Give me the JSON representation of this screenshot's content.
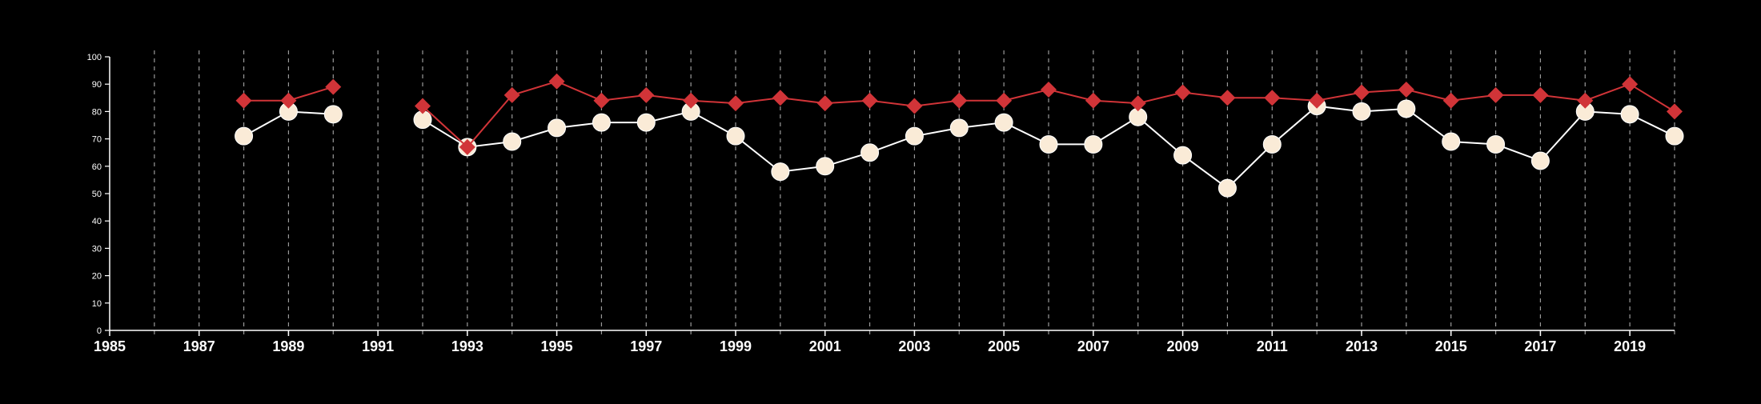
{
  "colors": {
    "background": "#000000",
    "axis": "#ffffff",
    "gridline": "#999999",
    "series_1": "#d13438",
    "series_2": "#ffffff",
    "series_2_marker_fill": "#faebd7"
  },
  "chart_data": {
    "type": "line",
    "title": "",
    "xlabel": "",
    "ylabel": "",
    "xlim": [
      1985,
      2020
    ],
    "ylim": [
      0,
      100
    ],
    "grid": "vertical-dashed",
    "legend": "none",
    "x_ticks": [
      1985,
      1987,
      1989,
      1991,
      1993,
      1995,
      1997,
      1999,
      2001,
      2003,
      2005,
      2007,
      2009,
      2011,
      2013,
      2015,
      2017,
      2019
    ],
    "y_ticks": [
      0,
      10,
      20,
      30,
      40,
      50,
      60,
      70,
      80,
      90,
      100
    ],
    "series": [
      {
        "marker": "diamond",
        "color": "#d13438",
        "x": [
          1988,
          1989,
          1990,
          1991,
          1992,
          1993,
          1994,
          1995,
          1996,
          1997,
          1998,
          1999,
          2000,
          2001,
          2002,
          2003,
          2004,
          2005,
          2006,
          2007,
          2008,
          2009,
          2010,
          2011,
          2012,
          2013,
          2014,
          2015,
          2016,
          2017,
          2018,
          2019,
          2020
        ],
        "values": [
          84,
          84,
          89,
          null,
          82,
          67,
          86,
          91,
          84,
          86,
          84,
          83,
          85,
          83,
          84,
          82,
          84,
          84,
          88,
          84,
          83,
          87,
          85,
          85,
          84,
          87,
          88,
          84,
          86,
          86,
          84,
          90,
          80
        ]
      },
      {
        "marker": "circle",
        "color": "#ffffff",
        "x": [
          1988,
          1989,
          1990,
          1991,
          1992,
          1993,
          1994,
          1995,
          1996,
          1997,
          1998,
          1999,
          2000,
          2001,
          2002,
          2003,
          2004,
          2005,
          2006,
          2007,
          2008,
          2009,
          2010,
          2011,
          2012,
          2013,
          2014,
          2015,
          2016,
          2017,
          2018,
          2019,
          2020
        ],
        "values": [
          71,
          80,
          79,
          null,
          77,
          67,
          69,
          74,
          76,
          76,
          80,
          71,
          58,
          60,
          65,
          71,
          74,
          76,
          68,
          68,
          78,
          64,
          52,
          68,
          82,
          80,
          81,
          69,
          68,
          62,
          80,
          79,
          71
        ]
      }
    ]
  }
}
